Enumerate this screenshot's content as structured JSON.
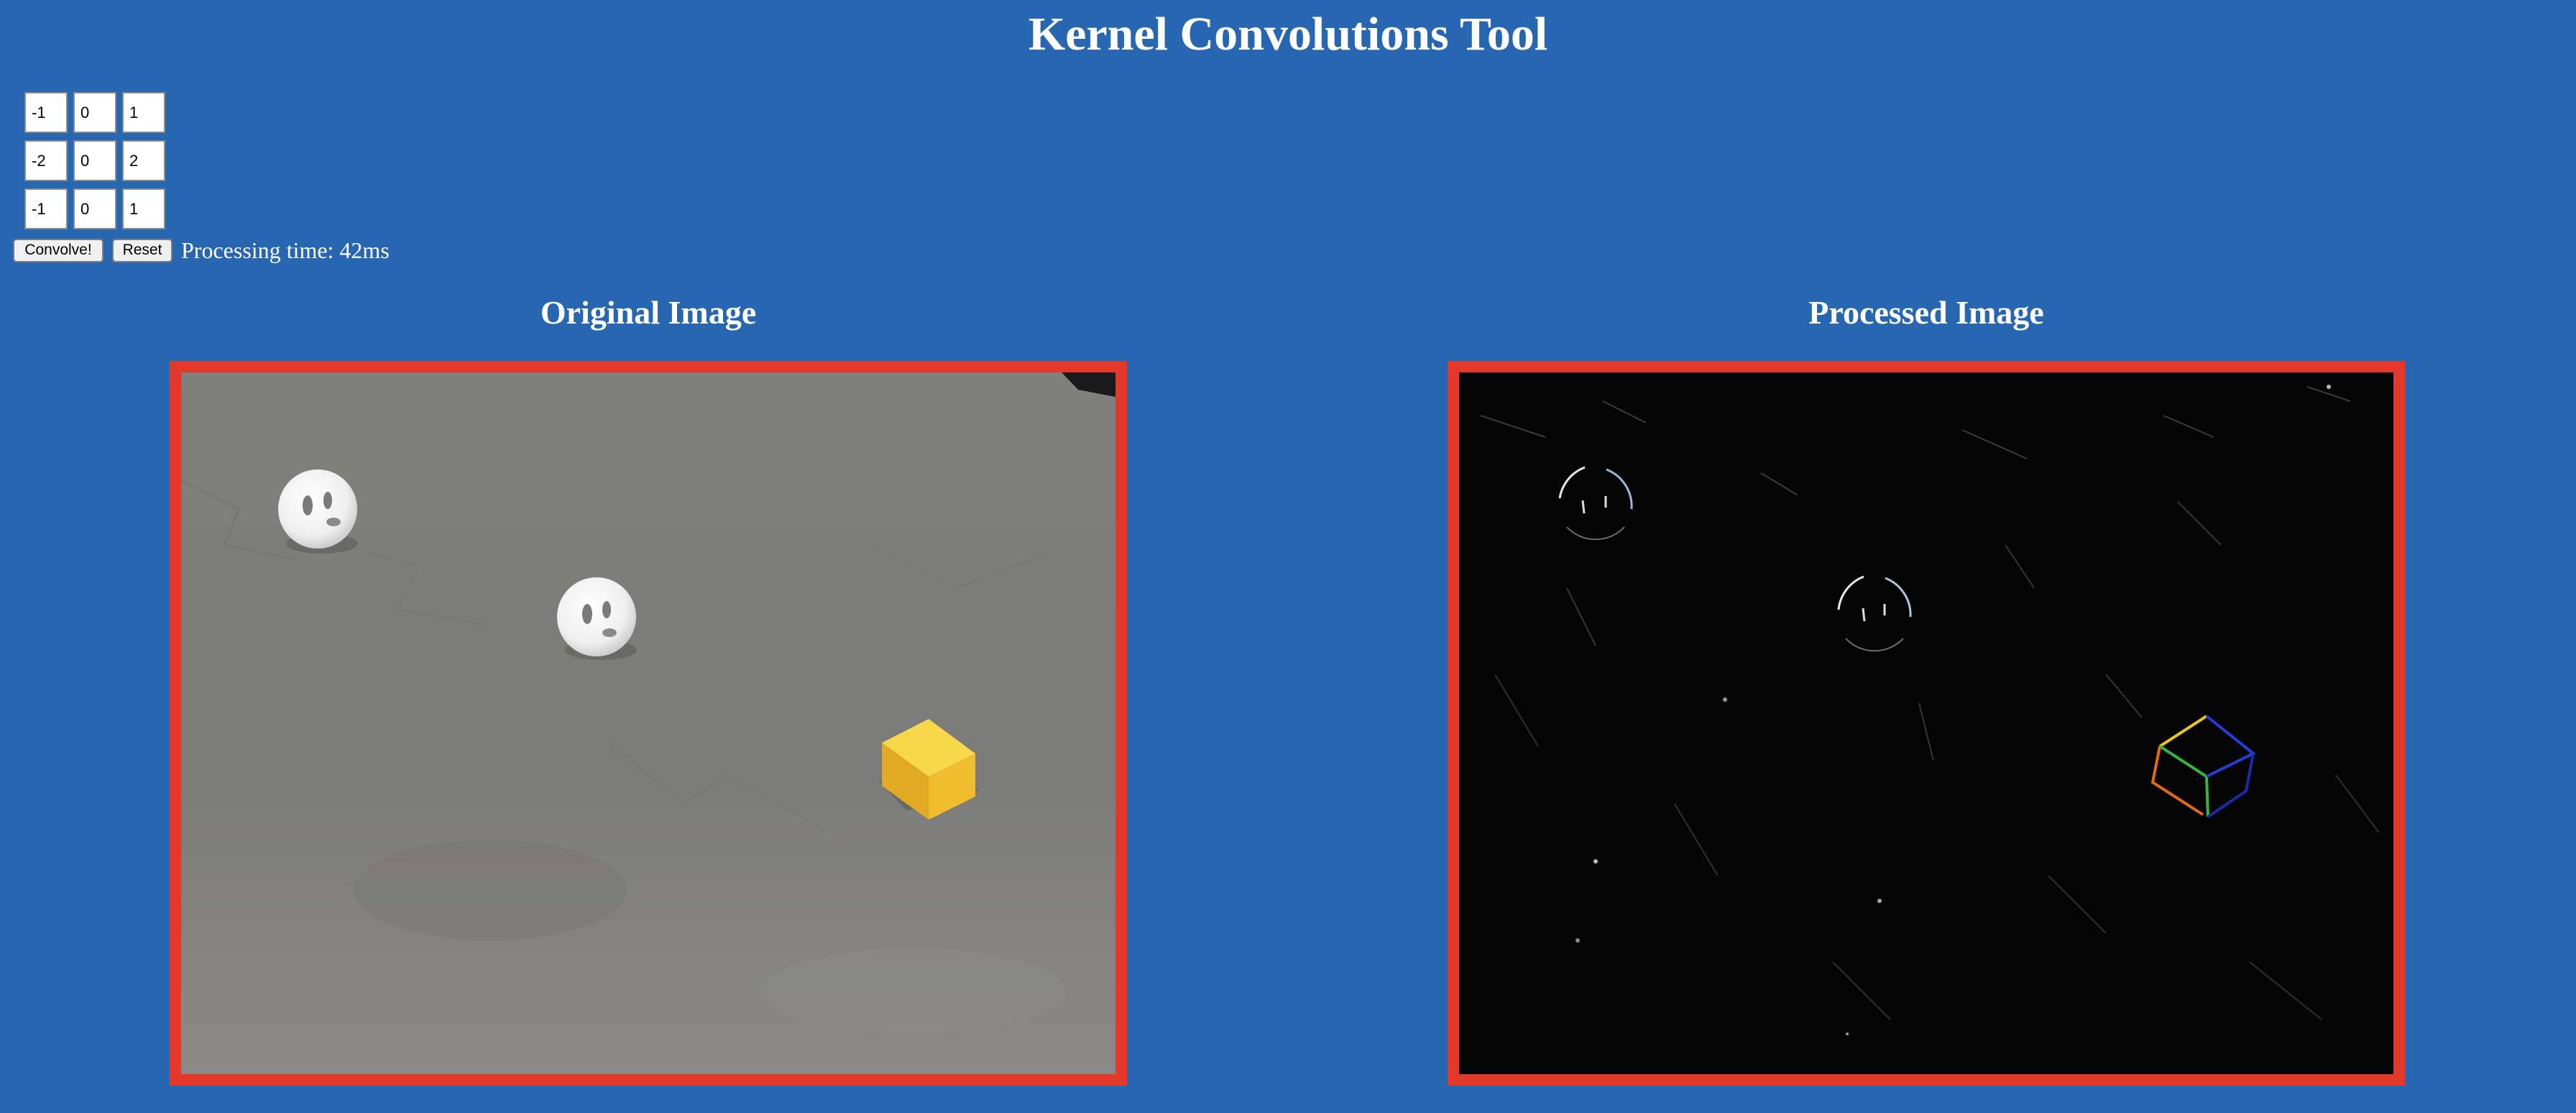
{
  "page": {
    "title": "Kernel Convolutions Tool"
  },
  "kernel": {
    "rows": [
      [
        "-1",
        "0",
        "1"
      ],
      [
        "-2",
        "0",
        "2"
      ],
      [
        "-1",
        "0",
        "1"
      ]
    ]
  },
  "controls": {
    "convolve_label": "Convolve!",
    "reset_label": "Reset",
    "processing_text": "Processing time: 42ms"
  },
  "panels": {
    "original_heading": "Original Image",
    "processed_heading": "Processed Image"
  },
  "colors": {
    "background": "#2767b2",
    "frame": "#e4382b",
    "floor": "#7c7c7a",
    "processed_background": "#050505",
    "cube": "#f2c431"
  }
}
